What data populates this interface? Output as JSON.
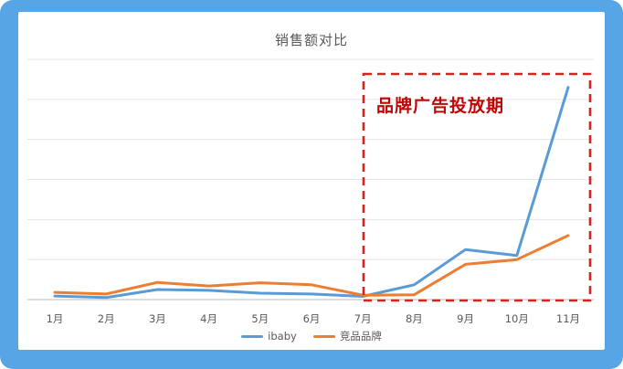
{
  "window": {
    "frame_color": "#57A5E5",
    "background": "#FFFFFF"
  },
  "chart": {
    "title": "销售额对比",
    "title_color": "#595959",
    "annotation": {
      "label": "品牌广告投放期",
      "text_color": "#C00505",
      "box_color": "#D42420"
    },
    "axis": {
      "label_color": "#595959",
      "gridline_color": "#E4E4E4",
      "axis_line_color": "#D2D2D2"
    }
  },
  "chart_data": {
    "type": "line",
    "title": "销售额对比",
    "categories": [
      "1月",
      "2月",
      "3月",
      "4月",
      "5月",
      "6月",
      "7月",
      "8月",
      "9月",
      "10月",
      "11月"
    ],
    "series": [
      {
        "name": "ibaby",
        "color": "#5B9BD5",
        "values": [
          9,
          5,
          25,
          23,
          16,
          14,
          8,
          37,
          125,
          110,
          530
        ]
      },
      {
        "name": "竞品品牌",
        "color": "#ED7D31",
        "values": [
          18,
          14,
          43,
          34,
          42,
          37,
          11,
          12,
          88,
          100,
          160
        ]
      }
    ],
    "xlabel": "",
    "ylabel": "",
    "ylim": [
      0,
      600
    ],
    "gridline_interval": 100,
    "y_axis_labels_visible": false,
    "grid": true,
    "legend_position": "bottom",
    "annotation": {
      "text": "品牌广告投放期",
      "x_span": [
        "7月",
        "11月"
      ],
      "style": "red dashed rectangle over advertising period"
    }
  }
}
